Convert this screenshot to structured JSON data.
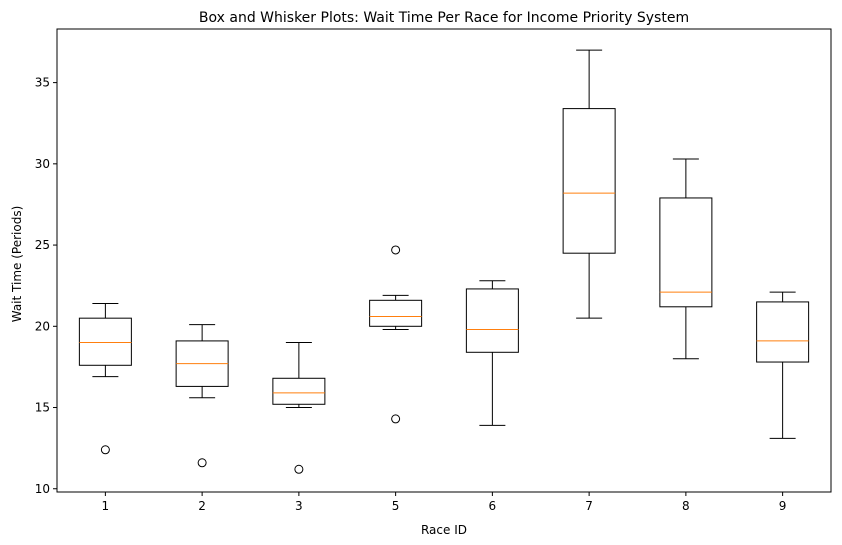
{
  "chart_data": {
    "type": "box",
    "title": "Box and Whisker Plots: Wait Time Per Race for Income Priority System",
    "xlabel": "Race ID",
    "ylabel": "Wait Time (Periods)",
    "ylim": [
      9.8,
      38.3
    ],
    "yticks": [
      10,
      15,
      20,
      25,
      30,
      35
    ],
    "grid": false,
    "colors": {
      "box": "#000000",
      "median": "#ff7f0e",
      "background": "#ffffff"
    },
    "categories": [
      "1",
      "2",
      "3",
      "5",
      "6",
      "7",
      "8",
      "9"
    ],
    "boxes": [
      {
        "label": "1",
        "whisker_low": 16.9,
        "q1": 17.6,
        "median": 19.0,
        "q3": 20.5,
        "whisker_high": 21.4,
        "outliers": [
          12.4
        ]
      },
      {
        "label": "2",
        "whisker_low": 15.6,
        "q1": 16.3,
        "median": 17.7,
        "q3": 19.1,
        "whisker_high": 20.1,
        "outliers": [
          11.6
        ]
      },
      {
        "label": "3",
        "whisker_low": 15.0,
        "q1": 15.2,
        "median": 15.9,
        "q3": 16.8,
        "whisker_high": 19.0,
        "outliers": [
          11.2
        ]
      },
      {
        "label": "5",
        "whisker_low": 19.8,
        "q1": 20.0,
        "median": 20.6,
        "q3": 21.6,
        "whisker_high": 21.9,
        "outliers": [
          24.7,
          14.3
        ]
      },
      {
        "label": "6",
        "whisker_low": 13.9,
        "q1": 18.4,
        "median": 19.8,
        "q3": 22.3,
        "whisker_high": 22.8,
        "outliers": []
      },
      {
        "label": "7",
        "whisker_low": 20.5,
        "q1": 24.5,
        "median": 28.2,
        "q3": 33.4,
        "whisker_high": 37.0,
        "outliers": []
      },
      {
        "label": "8",
        "whisker_low": 18.0,
        "q1": 21.2,
        "median": 22.1,
        "q3": 27.9,
        "whisker_high": 30.3,
        "outliers": []
      },
      {
        "label": "9",
        "whisker_low": 13.1,
        "q1": 17.8,
        "median": 19.1,
        "q3": 21.5,
        "whisker_high": 22.1,
        "outliers": []
      }
    ]
  }
}
